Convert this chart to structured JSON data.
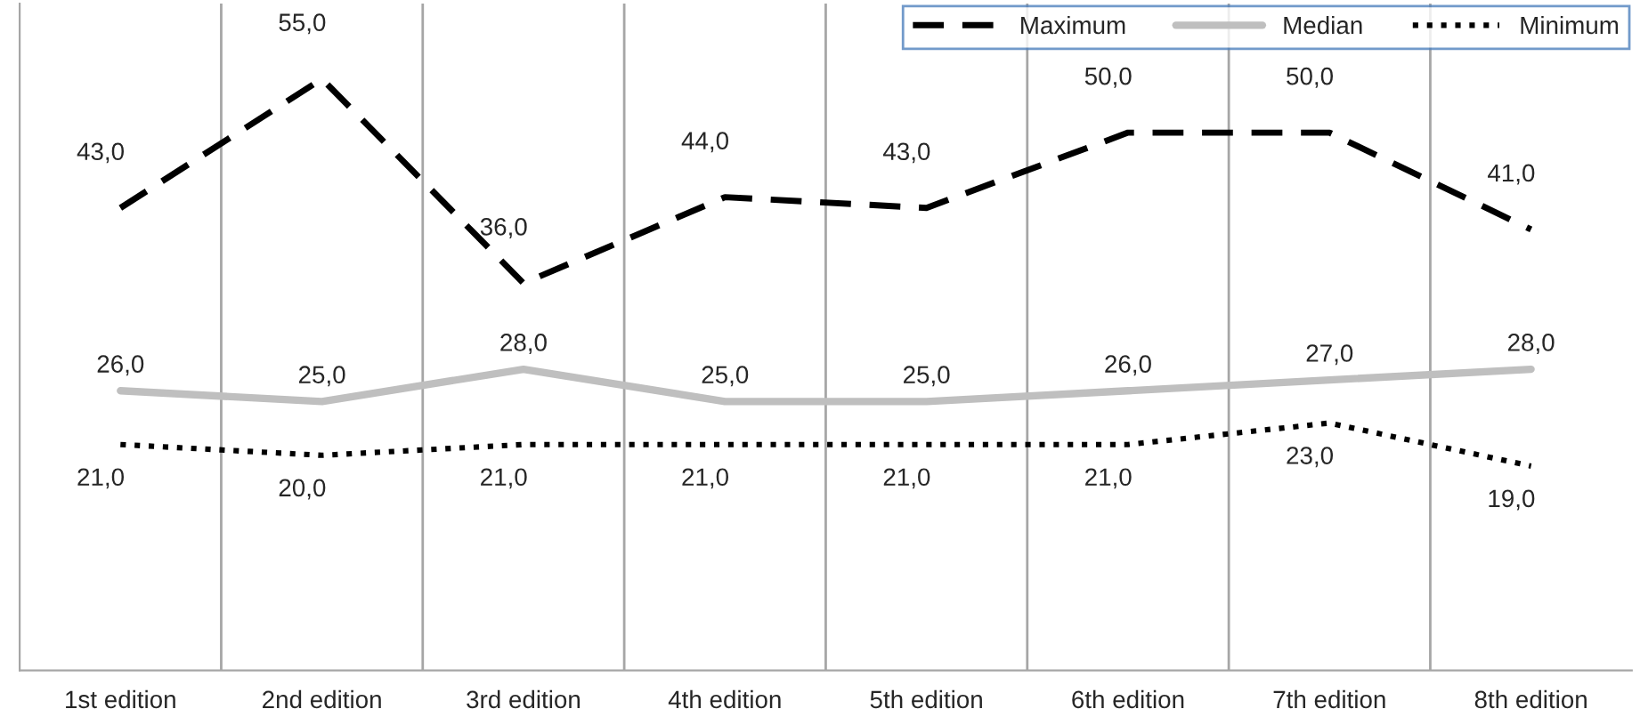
{
  "chart_data": {
    "type": "line",
    "categories": [
      "1st edition",
      "2nd edition",
      "3rd edition",
      "4th edition",
      "5th edition",
      "6th edition",
      "7th edition",
      "8th edition"
    ],
    "series": [
      {
        "name": "Maximum",
        "color": "#000000",
        "line_style": "dashed",
        "values": [
          43,
          55,
          36,
          44,
          43,
          50,
          50,
          41
        ],
        "value_labels": [
          "43,0",
          "55,0",
          "36,0",
          "44,0",
          "43,0",
          "50,0",
          "50,0",
          "41,0"
        ]
      },
      {
        "name": "Median",
        "color": "#bfbfbf",
        "line_style": "solid",
        "values": [
          26,
          25,
          28,
          25,
          25,
          26,
          27,
          28
        ],
        "value_labels": [
          "26,0",
          "25,0",
          "28,0",
          "25,0",
          "25,0",
          "26,0",
          "27,0",
          "28,0"
        ]
      },
      {
        "name": "Minimum",
        "color": "#000000",
        "line_style": "dotted",
        "values": [
          21,
          20,
          21,
          21,
          21,
          21,
          23,
          19
        ],
        "value_labels": [
          "21,0",
          "20,0",
          "21,0",
          "21,0",
          "21,0",
          "21,0",
          "23,0",
          "19,0"
        ]
      }
    ],
    "ylim": [
      0,
      62
    ],
    "grid": "x",
    "legend": "top right",
    "marker": "none",
    "tick_labels": "x"
  }
}
